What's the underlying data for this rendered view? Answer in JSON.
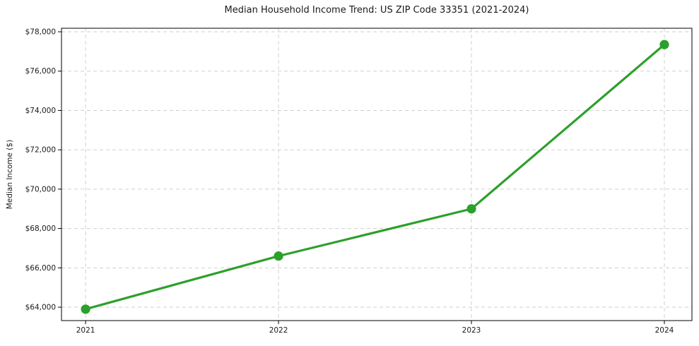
{
  "chart_data": {
    "type": "line",
    "title": "Median Household Income Trend: US ZIP Code 33351 (2021-2024)",
    "xlabel": "",
    "ylabel": "Median Income ($)",
    "x": [
      2021,
      2022,
      2023,
      2024
    ],
    "series": [
      {
        "name": "Median household income",
        "values": [
          63900,
          66600,
          69000,
          77350
        ]
      }
    ],
    "xtick_labels": [
      "2021",
      "2022",
      "2023",
      "2024"
    ],
    "ytick_values": [
      64000,
      66000,
      68000,
      70000,
      72000,
      74000,
      76000,
      78000
    ],
    "ytick_labels": [
      "$64,000",
      "$66,000",
      "$68,000",
      "$70,000",
      "$72,000",
      "$74,000",
      "$76,000",
      "$78,000"
    ],
    "xlim": [
      2020.875,
      2024.143
    ],
    "ylim": [
      63320,
      78180
    ],
    "grid": true,
    "grid_style": "dashed",
    "legend": "none",
    "line_color": "#2ca02c",
    "marker": "circle",
    "grid_color": "#cfcfcf",
    "axis_color": "#000000",
    "text_color": "#1a1a1a",
    "background_color": "#ffffff"
  }
}
